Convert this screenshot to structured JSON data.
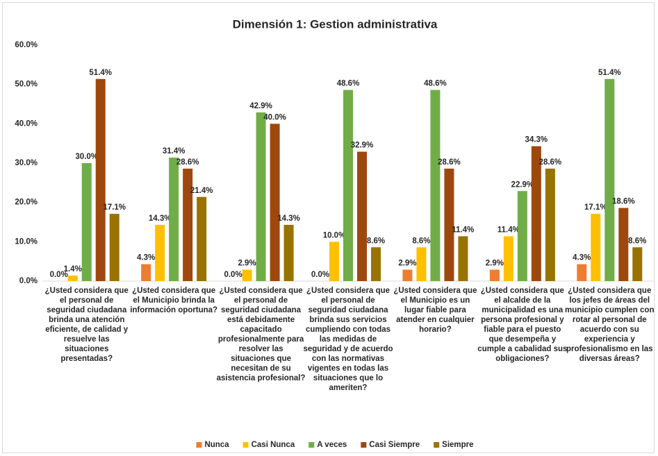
{
  "chart_data": {
    "type": "bar",
    "title": "Dimensión 1: Gestion administrativa",
    "categories": [
      "¿Usted considera que el personal de seguridad ciudadana brinda una atención eficiente, de calidad y resuelve las situaciones presentadas?",
      "¿Usted considera que el Municipio brinda la información oportuna?",
      "¿Usted considera que el personal de seguridad ciudadana está debidamente capacitado profesionalmente para resolver las situaciones que necesitan de su asistencia profesional?",
      "¿Usted considera que el personal de seguridad ciudadana brinda sus servicios cumpliendo con todas las medidas de seguridad y de acuerdo con las normativas vigentes en todas las situaciones que lo ameriten?",
      "¿Usted considera que el Municipio es un lugar fiable para atender en cualquier horario?",
      "¿Usted considera que el alcalde de la municipalidad es una persona profesional y fiable para el puesto que desempeña y cumple a cabalidad sus obligaciones?",
      "¿Usted considera que los jefes de áreas del municipio cumplen con rotar al personal de acuerdo con su experiencia y profesionalismo en las diversas áreas?"
    ],
    "series": [
      {
        "name": "Nunca",
        "color": "#ed7d31",
        "values": [
          0.0,
          4.3,
          0.0,
          0.0,
          2.9,
          2.9,
          4.3
        ],
        "value_labels": [
          "0.0%",
          "4.3%",
          "0.0%",
          "0.0%",
          "2.9%",
          "2.9%",
          "4.3%"
        ]
      },
      {
        "name": "Casi Nunca",
        "color": "#ffc000",
        "values": [
          1.4,
          14.3,
          2.9,
          10.0,
          8.6,
          11.4,
          17.1
        ],
        "value_labels": [
          "1.4%",
          "14.3%",
          "2.9%",
          "10.0%",
          "8.6%",
          "11.4%",
          "17.1%"
        ]
      },
      {
        "name": "A veces",
        "color": "#70ad47",
        "values": [
          30.0,
          31.4,
          42.9,
          48.6,
          48.6,
          22.9,
          51.4
        ],
        "value_labels": [
          "30.0%",
          "31.4%",
          "42.9%",
          "48.6%",
          "48.6%",
          "22.9%",
          "51.4%"
        ]
      },
      {
        "name": "Casi Siempre",
        "color": "#9e480e",
        "values": [
          51.4,
          28.6,
          40.0,
          32.9,
          28.6,
          34.3,
          18.6
        ],
        "value_labels": [
          "51.4%",
          "28.6%",
          "40.0%",
          "32.9%",
          "28.6%",
          "34.3%",
          "18.6%"
        ]
      },
      {
        "name": "Siempre",
        "color": "#997300",
        "values": [
          17.1,
          21.4,
          14.3,
          8.6,
          11.4,
          28.6,
          8.6
        ],
        "value_labels": [
          "17.1%",
          "21.4%",
          "14.3%",
          "8.6%",
          "11.4%",
          "28.6%",
          "8.6%"
        ]
      }
    ],
    "ylim": [
      0,
      60
    ],
    "yticks": [
      {
        "value": 0,
        "label": "0.0%"
      },
      {
        "value": 10,
        "label": "10.0%"
      },
      {
        "value": 20,
        "label": "20.0%"
      },
      {
        "value": 30,
        "label": "30.0%"
      },
      {
        "value": 40,
        "label": "40.0%"
      },
      {
        "value": 50,
        "label": "50.0%"
      },
      {
        "value": 60,
        "label": "60.0%"
      }
    ],
    "grid": false,
    "legend": "bottom"
  }
}
